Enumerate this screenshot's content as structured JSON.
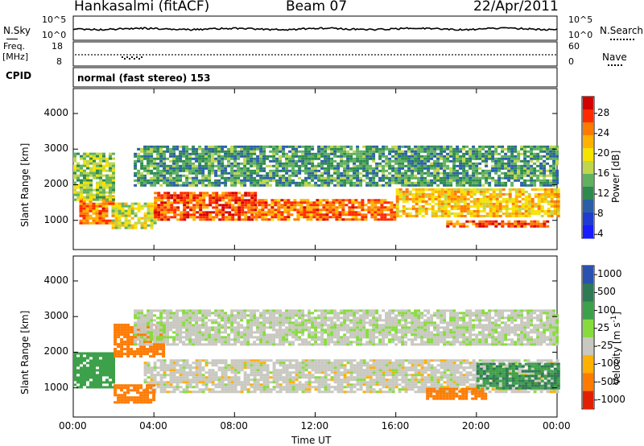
{
  "header": {
    "station": "Hankasalmi (fitACF)",
    "beam": "Beam 07",
    "date": "22/Apr/2011"
  },
  "top_panels": {
    "nsky_label": "N.Sky",
    "nsky_ticks": [
      "10^5",
      "10^0"
    ],
    "nsearch_label": "N.Search",
    "nsearch_ticks": [
      "10^5",
      "10^0"
    ],
    "freq_label": "Freq.",
    "freq_unit": "[MHz]",
    "freq_ticks": [
      "18",
      "8"
    ],
    "nave_label": "Nave",
    "nave_ticks": [
      "60",
      "0"
    ],
    "cpid_label": "CPID",
    "cpid_value": "normal (fast stereo) 153"
  },
  "chart_data": [
    {
      "type": "heatmap",
      "name": "power",
      "ylabel": "Slant Range [km]",
      "ylim": [
        180,
        4700
      ],
      "y_ticks": [
        1000,
        2000,
        3000,
        4000
      ],
      "colorbar_label": "Power [dB]",
      "colorbar_ticks": [
        "28",
        "24",
        "20",
        "16",
        "12",
        "8",
        "4"
      ],
      "colorbar_colors": [
        "#d40000",
        "#ff2a00",
        "#ff7a00",
        "#ffb000",
        "#f5e300",
        "#bfd64a",
        "#5fb05f",
        "#2d8a4e",
        "#2a5fa8",
        "#1f3bd0",
        "#1a1aff"
      ],
      "bands": [
        {
          "t0": 0.3,
          "t1": 1.9,
          "r0": 900,
          "r1": 1700,
          "level": 24
        },
        {
          "t0": 1.9,
          "t1": 4.0,
          "r0": 800,
          "r1": 1500,
          "level": 16
        },
        {
          "t0": 4.0,
          "t1": 9.0,
          "r0": 1000,
          "r1": 1800,
          "level": 26
        },
        {
          "t0": 9.0,
          "t1": 16.0,
          "r0": 1000,
          "r1": 1600,
          "level": 24
        },
        {
          "t0": 16.0,
          "t1": 24.0,
          "r0": 1100,
          "r1": 1900,
          "level": 20
        },
        {
          "t0": 18.5,
          "t1": 23.5,
          "r0": 800,
          "r1": 1000,
          "level": 26
        },
        {
          "t0": 3.0,
          "t1": 24.0,
          "r0": 2000,
          "r1": 3100,
          "level": 10
        },
        {
          "t0": 0.0,
          "t1": 2.0,
          "r0": 1600,
          "r1": 2900,
          "level": 14
        }
      ]
    },
    {
      "type": "heatmap",
      "name": "velocity",
      "ylabel": "Slant Range [km]",
      "ylim": [
        180,
        4700
      ],
      "y_ticks": [
        1000,
        2000,
        3000,
        4000
      ],
      "colorbar_label": "Velocity [m s",
      "colorbar_unit_sup": "-1",
      "colorbar_unit_close": "]",
      "colorbar_ticks": [
        "1000",
        "500",
        "100",
        "25",
        "-25",
        "-100",
        "-500",
        "-1000"
      ],
      "colorbar_colors": [
        "#2a50b0",
        "#2d7a55",
        "#3da04a",
        "#86dc3c",
        "#c8c8c0",
        "#ffb000",
        "#ff7a00",
        "#e02000"
      ],
      "bands": [
        {
          "t0": 3.5,
          "t1": 24.0,
          "r0": 900,
          "r1": 1800,
          "level": 0
        },
        {
          "t0": 20.0,
          "t1": 24.0,
          "r0": 1000,
          "r1": 1700,
          "level": 300
        },
        {
          "t0": 0.0,
          "t1": 2.0,
          "r0": 1000,
          "r1": 2000,
          "level": 200
        },
        {
          "t0": 2.0,
          "t1": 4.5,
          "r0": 1900,
          "r1": 2800,
          "level": -400
        },
        {
          "t0": 2.0,
          "t1": 4.0,
          "r0": 600,
          "r1": 1100,
          "level": -300
        },
        {
          "t0": 17.5,
          "t1": 20.5,
          "r0": 700,
          "r1": 1000,
          "level": -200
        },
        {
          "t0": 3.0,
          "t1": 24.0,
          "r0": 2200,
          "r1": 3200,
          "level": 10
        }
      ]
    }
  ],
  "x_axis": {
    "ticks": [
      "00:00",
      "04:00",
      "08:00",
      "12:00",
      "16:00",
      "20:00",
      "00:00"
    ],
    "label": "Time UT"
  }
}
